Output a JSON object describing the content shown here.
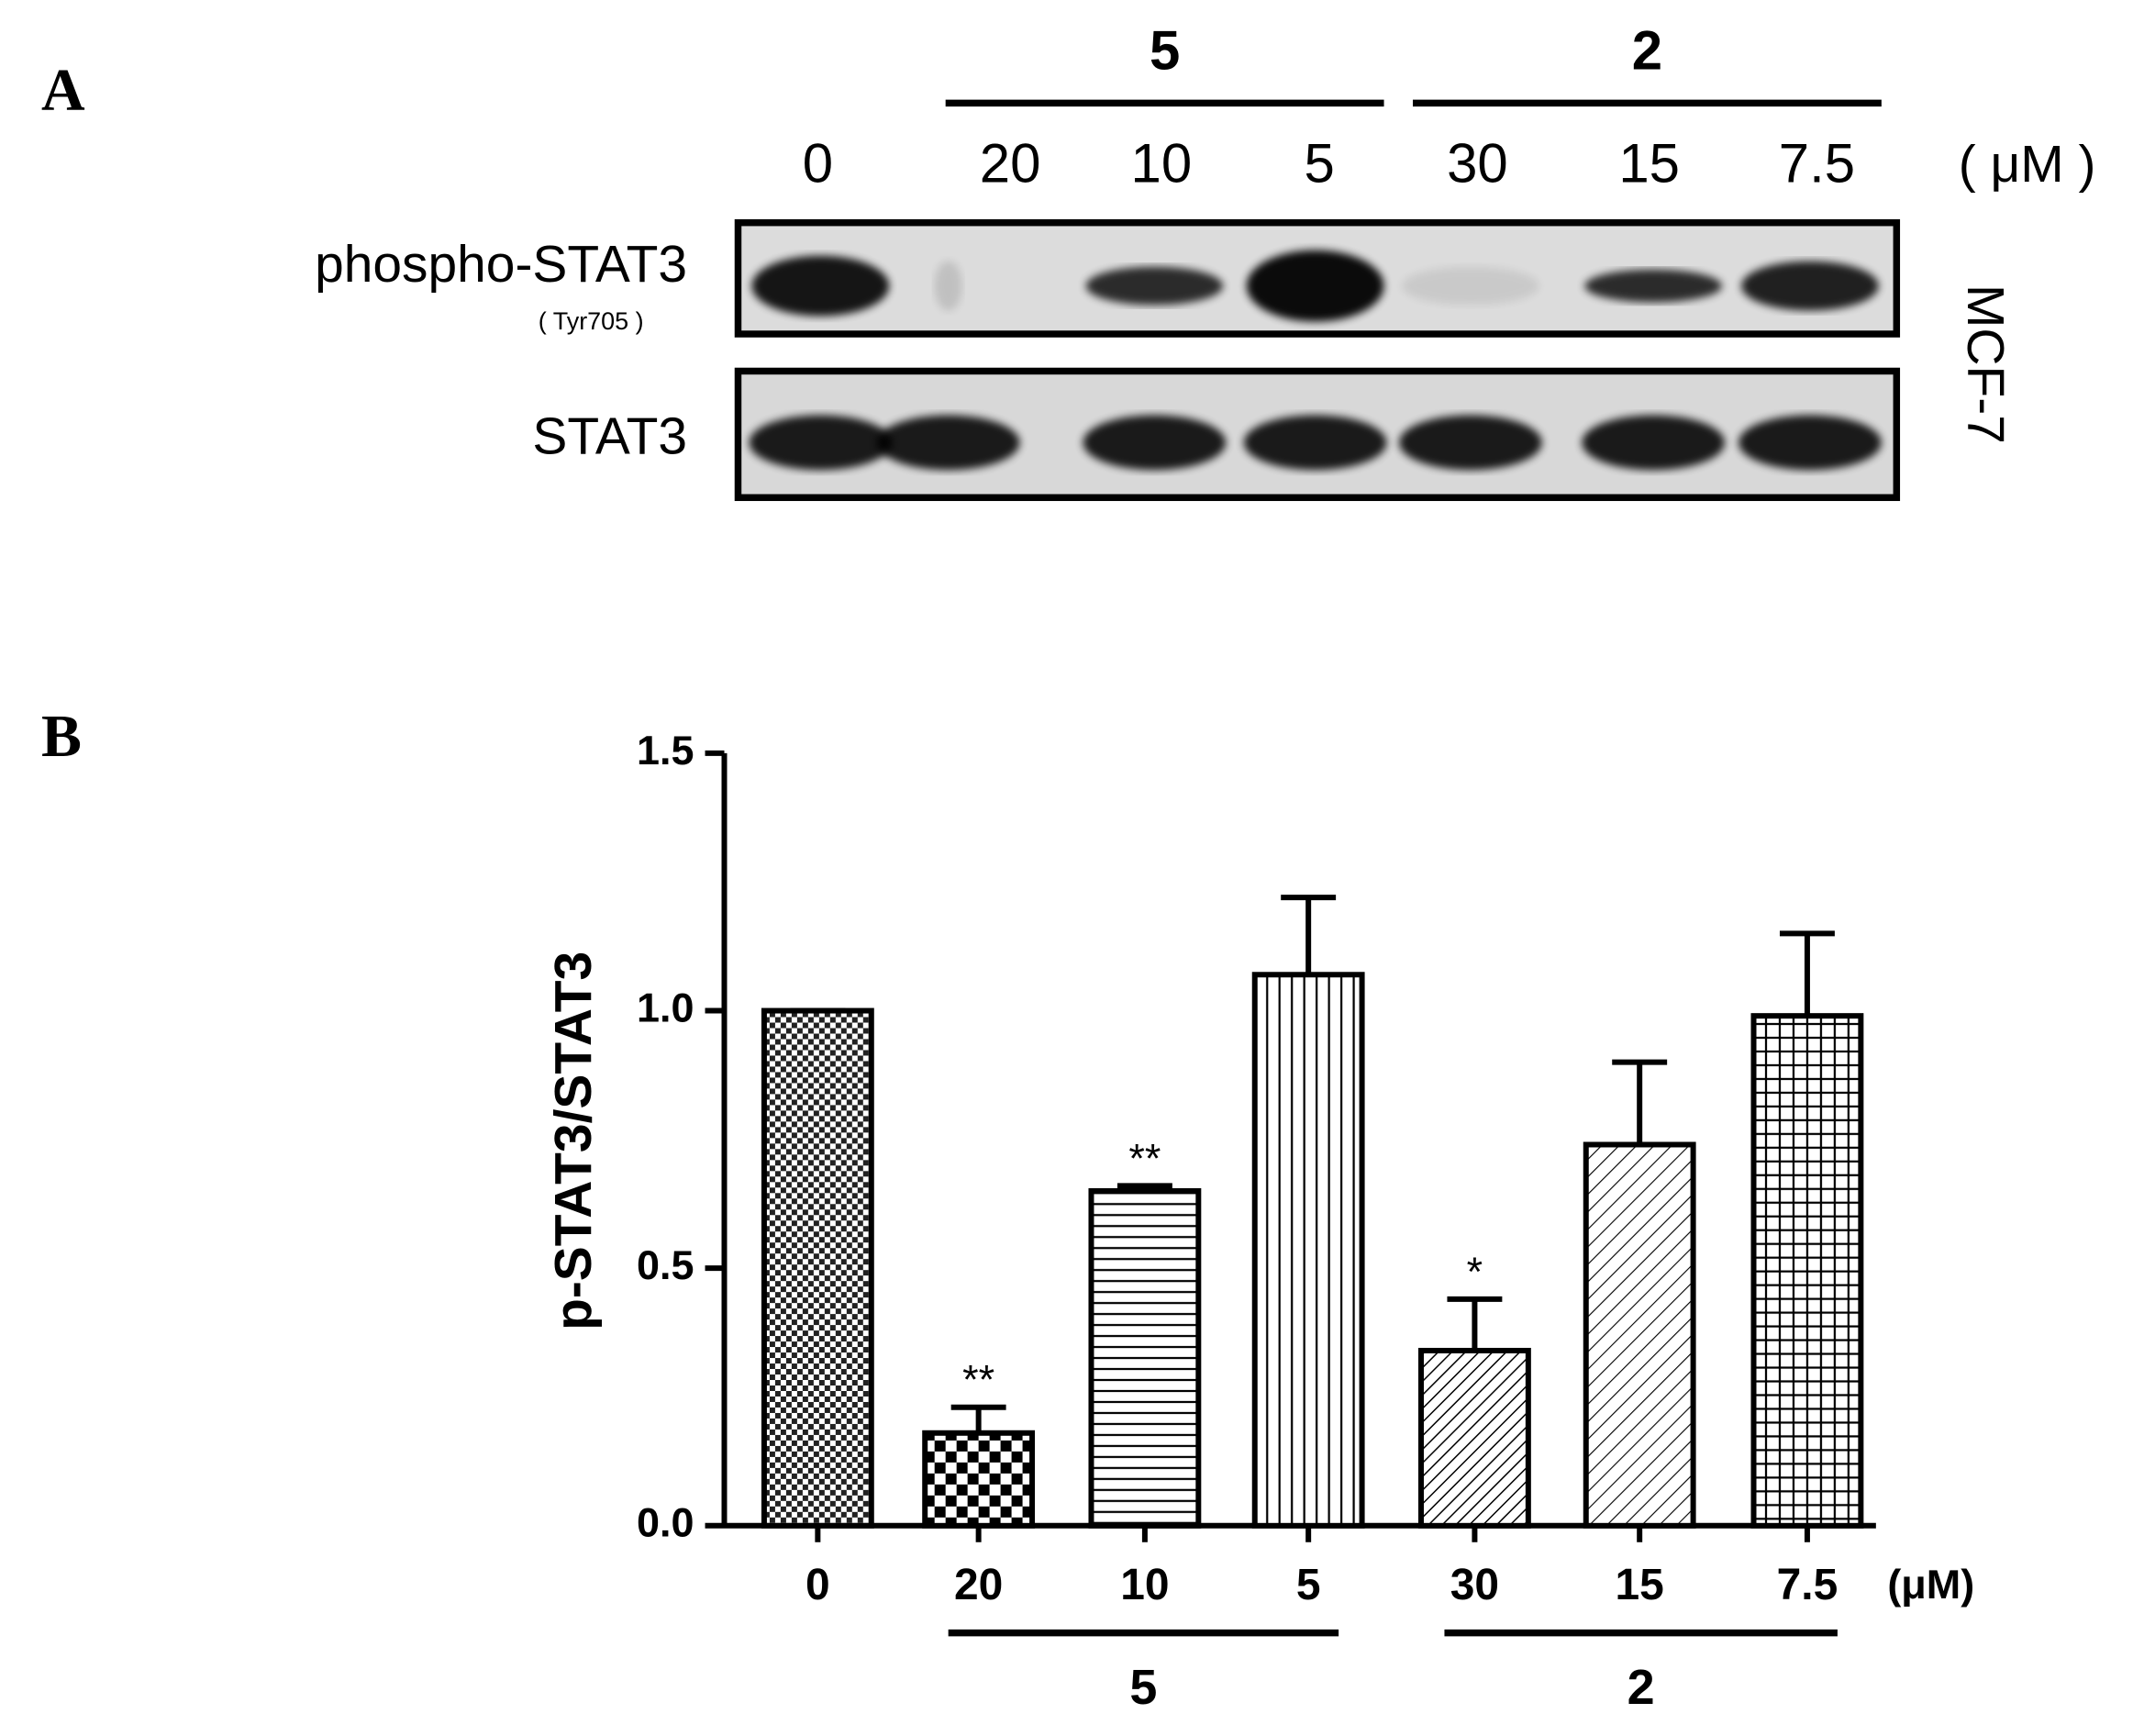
{
  "panel_a": {
    "label": "A",
    "lanes": [
      "0",
      "20",
      "10",
      "5",
      "30",
      "15",
      "7.5"
    ],
    "group_labels": [
      null,
      "5",
      "5",
      "5",
      "2",
      "2",
      "2"
    ],
    "unit": "( μM )",
    "rows": [
      "phospho-STAT3",
      "STAT3"
    ],
    "row_sublabel": "( Tyr705 )",
    "cell_line": "MCF-7"
  },
  "chart_data": {
    "type": "bar",
    "panel_label": "B",
    "y_label": "p-STAT3/STAT3",
    "x_unit": "(μM)",
    "categories": [
      "0",
      "20",
      "10",
      "5",
      "30",
      "15",
      "7.5"
    ],
    "group_labels": [
      null,
      "5",
      "5",
      "5",
      "2",
      "2",
      "2"
    ],
    "values": [
      1.0,
      0.18,
      0.65,
      1.07,
      0.34,
      0.74,
      0.99
    ],
    "errors": [
      0,
      0.05,
      0.01,
      0.15,
      0.1,
      0.16,
      0.16
    ],
    "significance": [
      null,
      "**",
      "**",
      null,
      "*",
      null,
      null
    ],
    "patterns": [
      "checker-fine",
      "checker",
      "horizontal",
      "vertical",
      "diagonal-fine",
      "diagonal",
      "grid"
    ],
    "color": "#000000",
    "ylim": [
      0,
      1.5
    ],
    "yticks": [
      {
        "value": 0,
        "label": "0.0"
      },
      {
        "value": 0.5,
        "label": "0.5"
      },
      {
        "value": 1,
        "label": "1.0"
      },
      {
        "value": 1.5,
        "label": "1.5"
      }
    ]
  }
}
